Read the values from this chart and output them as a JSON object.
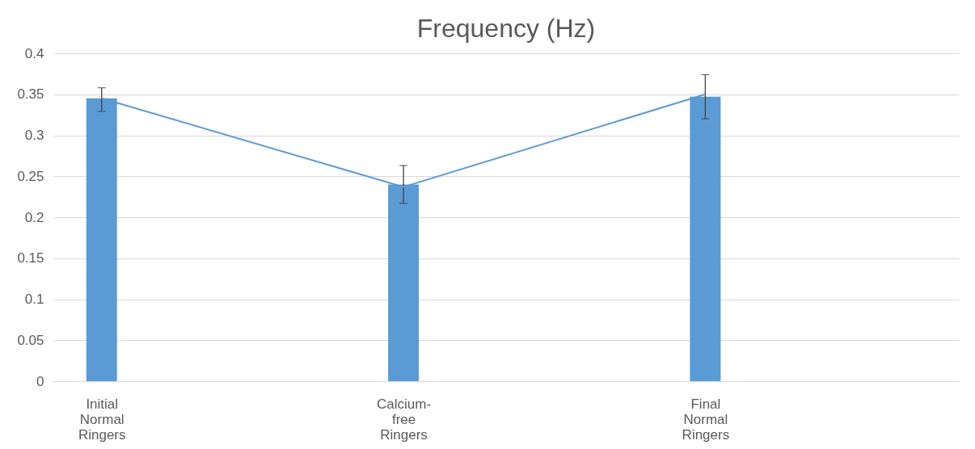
{
  "chart_data": {
    "type": "bar",
    "title": "Frequency (Hz)",
    "categories": [
      "Initial Normal Ringers",
      "Calcium-free Ringers",
      "Final Normal Ringers"
    ],
    "series": [
      {
        "color": "#5b9bd5",
        "values": [
          0.345,
          0.24,
          0.347
        ],
        "errors": [
          [
            0.329,
            0.358
          ],
          [
            0.217,
            0.263
          ],
          [
            0.32,
            0.374
          ]
        ]
      },
      {
        "type": "line",
        "color": "#5b9bd5",
        "values": [
          0.345,
          0.237,
          0.35
        ]
      }
    ],
    "ylim": [
      0,
      0.4
    ],
    "yticks": [
      0,
      0.05,
      0.1,
      0.15,
      0.2,
      0.25,
      0.3,
      0.35,
      0.4
    ],
    "grid": "y"
  }
}
